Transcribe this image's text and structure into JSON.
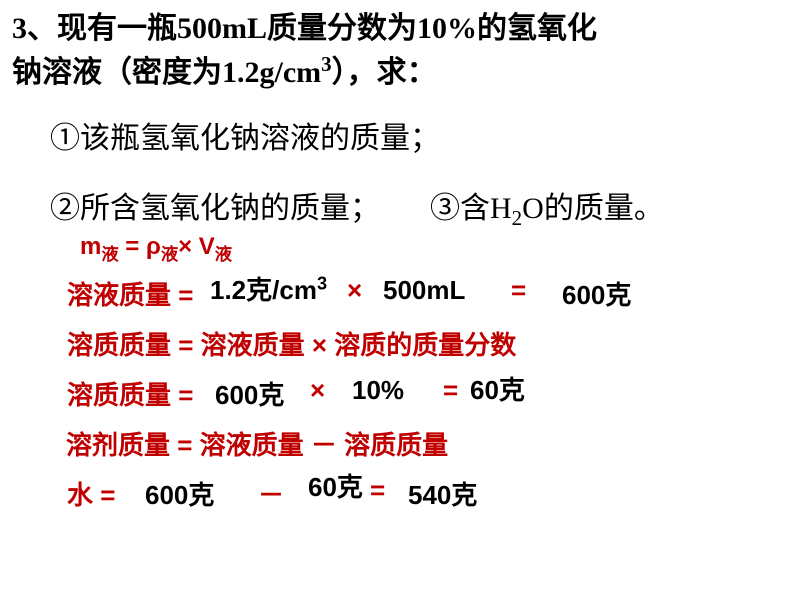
{
  "question": {
    "number": "3、",
    "text_line1": "现有一瓶500mL质量分数为10%的氢氧化",
    "text_line2": "钠溶液（密度为1.2g/cm",
    "text_line2_sup": "3",
    "text_line2_tail": "），求：",
    "sub1": "①该瓶氢氧化钠溶液的质量；",
    "sub2": "②所含氢氧化钠的质量；",
    "sub3_a": "③含H",
    "sub3_sub": "2",
    "sub3_b": "O的质量。"
  },
  "formula_top": {
    "a": "m",
    "a_sub": "液",
    "eq1": " = ρ",
    "b_sub": "液",
    "times": "× V",
    "c_sub": "液"
  },
  "sol1": {
    "label": "溶液质量 =",
    "val1_a": "1.2克/cm",
    "val1_sup": "3",
    "times": "×",
    "val2": "500mL",
    "eq": "=",
    "result": "600克"
  },
  "solute_formula": "溶质质量 =  溶液质量 ×  溶质的质量分数",
  "solute_calc": {
    "label": "溶质质量 =",
    "v1": "600克",
    "times": "×",
    "v2": "10%",
    "eq": "=",
    "res": "60克"
  },
  "solvent_formula": "溶剂质量 =  溶液质量 － 溶质质量",
  "water": {
    "label": "水 =",
    "v1": "600克",
    "minus": "－",
    "v2": "60克",
    "eq": "=",
    "res": "540克"
  },
  "colors": {
    "red": "#c00000",
    "black": "#000000",
    "bg": "#ffffff"
  }
}
